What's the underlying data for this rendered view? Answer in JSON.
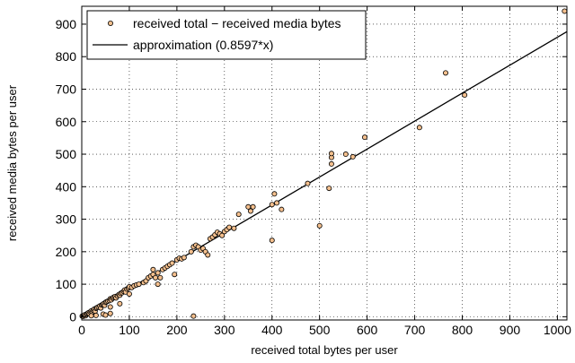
{
  "chart_data": {
    "type": "scatter",
    "xlabel": "received total bytes per user",
    "ylabel": "received media  bytes per user",
    "xlim": [
      0,
      1020
    ],
    "ylim": [
      -10,
      955
    ],
    "xticks": [
      0,
      100,
      200,
      300,
      400,
      500,
      600,
      700,
      800,
      900,
      1000
    ],
    "yticks": [
      0,
      100,
      200,
      300,
      400,
      500,
      600,
      700,
      800,
      900
    ],
    "grid": true,
    "legend_position": "top-left",
    "legend": [
      "received total − received media bytes",
      "approximation (0.8597*x)"
    ],
    "series": [
      {
        "name": "received total − received media bytes",
        "kind": "scatter",
        "marker_color": "#f5c08e",
        "edge_color": "#000000",
        "points": [
          [
            1,
            2
          ],
          [
            3,
            1
          ],
          [
            5,
            4
          ],
          [
            6,
            6
          ],
          [
            8,
            3
          ],
          [
            10,
            8
          ],
          [
            12,
            10
          ],
          [
            14,
            12
          ],
          [
            16,
            9
          ],
          [
            18,
            15
          ],
          [
            20,
            18
          ],
          [
            22,
            14
          ],
          [
            24,
            20
          ],
          [
            26,
            23
          ],
          [
            28,
            17
          ],
          [
            30,
            26
          ],
          [
            32,
            28
          ],
          [
            35,
            30
          ],
          [
            38,
            33
          ],
          [
            40,
            27
          ],
          [
            42,
            36
          ],
          [
            44,
            38
          ],
          [
            46,
            40
          ],
          [
            48,
            35
          ],
          [
            50,
            44
          ],
          [
            52,
            46
          ],
          [
            55,
            48
          ],
          [
            58,
            50
          ],
          [
            60,
            55
          ],
          [
            62,
            52
          ],
          [
            65,
            57
          ],
          [
            67,
            60
          ],
          [
            70,
            62
          ],
          [
            72,
            58
          ],
          [
            75,
            64
          ],
          [
            78,
            68
          ],
          [
            80,
            66
          ],
          [
            82,
            72
          ],
          [
            85,
            74
          ],
          [
            88,
            78
          ],
          [
            90,
            82
          ],
          [
            92,
            76
          ],
          [
            95,
            85
          ],
          [
            98,
            88
          ],
          [
            100,
            92
          ],
          [
            105,
            90
          ],
          [
            110,
            95
          ],
          [
            115,
            98
          ],
          [
            20,
            3
          ],
          [
            30,
            4
          ],
          [
            45,
            8
          ],
          [
            50,
            5
          ],
          [
            60,
            10
          ],
          [
            80,
            40
          ],
          [
            100,
            70
          ],
          [
            60,
            30
          ],
          [
            120,
            100
          ],
          [
            130,
            105
          ],
          [
            135,
            110
          ],
          [
            140,
            120
          ],
          [
            145,
            125
          ],
          [
            150,
            130
          ],
          [
            155,
            120
          ],
          [
            160,
            135
          ],
          [
            170,
            145
          ],
          [
            175,
            150
          ],
          [
            180,
            155
          ],
          [
            185,
            160
          ],
          [
            190,
            165
          ],
          [
            200,
            175
          ],
          [
            205,
            180
          ],
          [
            210,
            178
          ],
          [
            215,
            182
          ],
          [
            150,
            145
          ],
          [
            165,
            120
          ],
          [
            195,
            130
          ],
          [
            160,
            100
          ],
          [
            230,
            200
          ],
          [
            235,
            215
          ],
          [
            240,
            220
          ],
          [
            245,
            215
          ],
          [
            250,
            205
          ],
          [
            255,
            210
          ],
          [
            260,
            200
          ],
          [
            265,
            190
          ],
          [
            270,
            240
          ],
          [
            275,
            245
          ],
          [
            280,
            252
          ],
          [
            285,
            260
          ],
          [
            290,
            255
          ],
          [
            295,
            250
          ],
          [
            300,
            262
          ],
          [
            305,
            268
          ],
          [
            310,
            275
          ],
          [
            320,
            272
          ],
          [
            330,
            315
          ],
          [
            350,
            338
          ],
          [
            355,
            325
          ],
          [
            360,
            338
          ],
          [
            400,
            235
          ],
          [
            400,
            345
          ],
          [
            405,
            378
          ],
          [
            410,
            350
          ],
          [
            420,
            330
          ],
          [
            475,
            410
          ],
          [
            500,
            280
          ],
          [
            520,
            395
          ],
          [
            525,
            470
          ],
          [
            525,
            490
          ],
          [
            525,
            502
          ],
          [
            555,
            500
          ],
          [
            570,
            492
          ],
          [
            595,
            552
          ],
          [
            710,
            582
          ],
          [
            765,
            750
          ],
          [
            805,
            682
          ],
          [
            1015,
            940
          ],
          [
            235,
            2
          ]
        ]
      },
      {
        "name": "approximation (0.8597*x)",
        "kind": "line",
        "slope": 0.8597,
        "color": "#000000"
      }
    ]
  }
}
